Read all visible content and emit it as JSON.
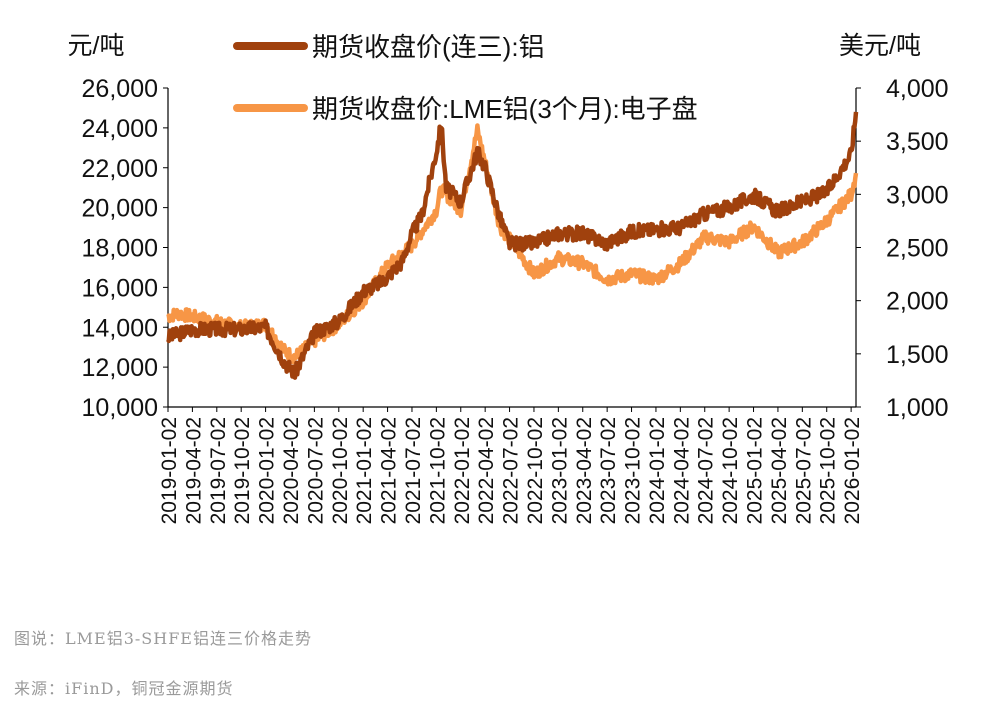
{
  "caption": "图说：LME铝3-SHFE铝连三价格走势",
  "source": "来源：iFinD，铜冠金源期货",
  "colors": {
    "shfe": "#A0410D",
    "lme": "#F79646",
    "axis": "#000000"
  },
  "chart_data": {
    "type": "line",
    "left_axis": {
      "unit": "元/吨",
      "range": [
        10000,
        26000
      ],
      "ticks": [
        "10,000",
        "12,000",
        "14,000",
        "16,000",
        "18,000",
        "20,000",
        "22,000",
        "24,000",
        "26,000"
      ]
    },
    "right_axis": {
      "unit": "美元/吨",
      "range": [
        1000,
        4000
      ],
      "ticks": [
        "1,000",
        "1,500",
        "2,000",
        "2,500",
        "3,000",
        "3,500",
        "4,000"
      ]
    },
    "x_labels": [
      "2019-01-02",
      "2019-04-02",
      "2019-07-02",
      "2019-10-02",
      "2020-01-02",
      "2020-04-02",
      "2020-07-02",
      "2020-10-02",
      "2021-01-02",
      "2021-04-02",
      "2021-07-02",
      "2021-10-02",
      "2022-01-02",
      "2022-04-02",
      "2022-07-02",
      "2022-10-02",
      "2023-01-02",
      "2023-04-02",
      "2023-07-02",
      "2023-10-02",
      "2024-01-02",
      "2024-04-02",
      "2024-07-02",
      "2024-10-02",
      "2025-01-02",
      "2025-04-02",
      "2025-07-02",
      "2025-10-02",
      "2026-01-02"
    ],
    "series": [
      {
        "name": "期货收盘价(连三):铝",
        "axis": "left",
        "x": [
          2019.0,
          2019.25,
          2019.5,
          2019.75,
          2020.0,
          2020.2,
          2020.3,
          2020.5,
          2020.75,
          2021.0,
          2021.2,
          2021.4,
          2021.5,
          2021.6,
          2021.75,
          2021.8,
          2021.85,
          2022.0,
          2022.17,
          2022.25,
          2022.4,
          2022.5,
          2022.75,
          2023.0,
          2023.25,
          2023.5,
          2023.75,
          2024.0,
          2024.25,
          2024.5,
          2024.75,
          2025.0,
          2025.25,
          2025.5,
          2025.75,
          2026.0,
          2026.05
        ],
        "values": [
          13500,
          13900,
          13900,
          13900,
          14000,
          12200,
          11700,
          13700,
          14300,
          15800,
          16300,
          17300,
          18700,
          19600,
          22800,
          24200,
          21000,
          20300,
          22800,
          22000,
          19500,
          18200,
          18200,
          18700,
          18700,
          18200,
          18800,
          18900,
          19000,
          19700,
          20000,
          20600,
          19800,
          20300,
          20800,
          22700,
          24800
        ]
      },
      {
        "name": "期货收盘价:LME铝(3个月):电子盘",
        "axis": "right",
        "x": [
          2019.0,
          2019.1,
          2019.25,
          2019.5,
          2019.75,
          2020.0,
          2020.2,
          2020.3,
          2020.5,
          2020.75,
          2021.0,
          2021.25,
          2021.5,
          2021.75,
          2021.8,
          2022.0,
          2022.17,
          2022.25,
          2022.4,
          2022.6,
          2022.75,
          2023.0,
          2023.25,
          2023.5,
          2023.75,
          2024.0,
          2024.25,
          2024.5,
          2024.75,
          2025.0,
          2025.25,
          2025.5,
          2025.75,
          2026.0,
          2026.05
        ],
        "values": [
          1850,
          1880,
          1850,
          1800,
          1750,
          1780,
          1520,
          1470,
          1620,
          1780,
          2000,
          2330,
          2520,
          2850,
          3050,
          2850,
          3600,
          3300,
          2700,
          2450,
          2250,
          2400,
          2350,
          2200,
          2250,
          2200,
          2350,
          2600,
          2550,
          2700,
          2450,
          2550,
          2750,
          3000,
          3200
        ]
      }
    ],
    "legend": [
      "期货收盘价(连三):铝",
      "期货收盘价:LME铝(3个月):电子盘"
    ]
  }
}
